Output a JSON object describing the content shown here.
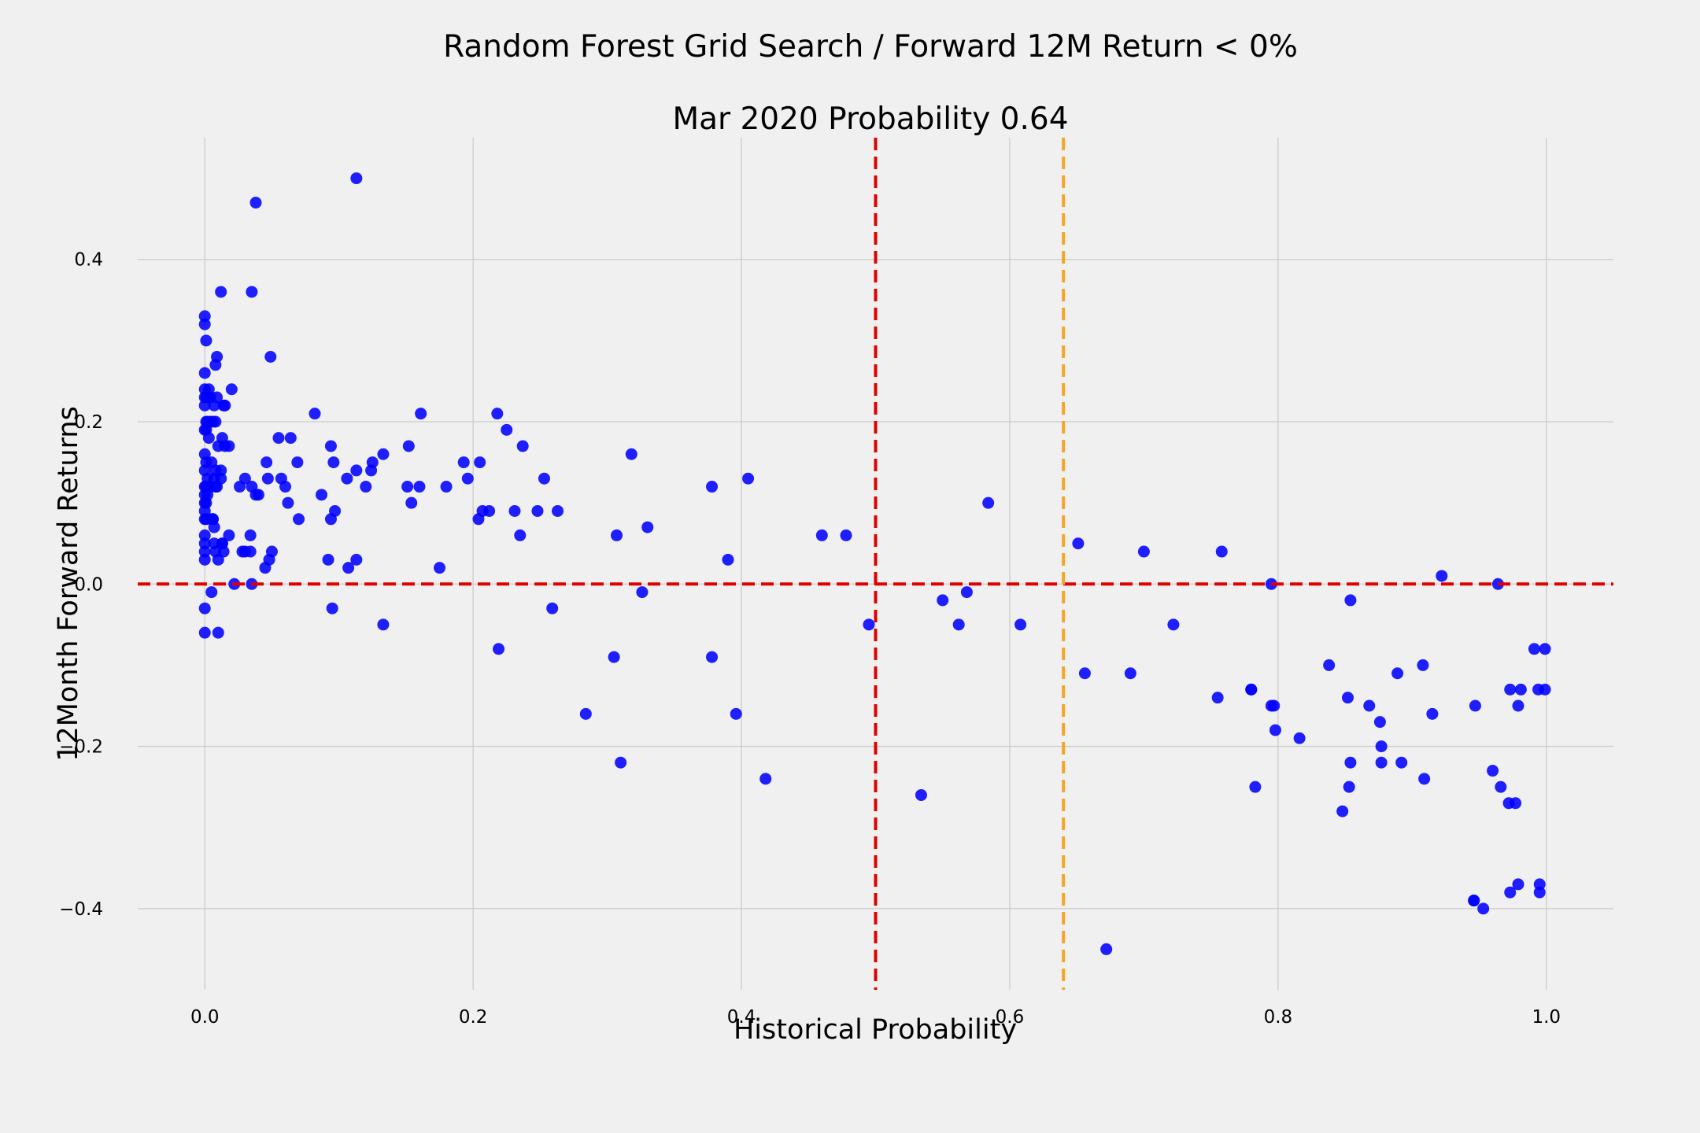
{
  "chart_data": {
    "type": "scatter",
    "title": "Random Forest Grid Search / Forward 12M Return < 0%",
    "subtitle": "Mar 2020 Probability 0.64",
    "xlabel": "Historical Probability",
    "ylabel": "12Month Forward Returns",
    "xlim": [
      -0.05,
      1.05
    ],
    "ylim": [
      -0.5,
      0.55
    ],
    "xticks": [
      0.0,
      0.2,
      0.4,
      0.6,
      0.8,
      1.0
    ],
    "xtick_labels": [
      "0.0",
      "0.2",
      "0.4",
      "0.6",
      "0.8",
      "1.0"
    ],
    "yticks": [
      -0.4,
      -0.2,
      0.0,
      0.2,
      0.4
    ],
    "ytick_labels": [
      "−0.4",
      "−0.2",
      "0.0",
      "0.2",
      "0.4"
    ],
    "grid": true,
    "reference_lines": [
      {
        "orientation": "horizontal",
        "value": 0.0,
        "color": "#e00000",
        "style": "dashed"
      },
      {
        "orientation": "vertical",
        "value": 0.5,
        "color": "#e00000",
        "style": "dashed"
      },
      {
        "orientation": "vertical",
        "value": 0.64,
        "color": "#f5a623",
        "style": "dashed"
      }
    ],
    "point_color": "#0000ff",
    "background_color": "#f0f0f0",
    "x": [
      0.113,
      0.038,
      0.012,
      0.035,
      0.0,
      0.0,
      0.001,
      0.009,
      0.049,
      0.008,
      0.0,
      0.0,
      0.003,
      0.02,
      0.0,
      0.001,
      0.004,
      0.009,
      0.015,
      0.007,
      0.014,
      0.0,
      0.001,
      0.004,
      0.008,
      0.002,
      0.006,
      0.013,
      0.018,
      0.0,
      0.001,
      0.003,
      0.01,
      0.015,
      0.0,
      0.001,
      0.005,
      0.008,
      0.012,
      0.0,
      0.002,
      0.007,
      0.012,
      0.026,
      0.03,
      0.035,
      0.04,
      0.0,
      0.001,
      0.004,
      0.009,
      0.0,
      0.002,
      0.006,
      0.0,
      0.001,
      0.005,
      0.0,
      0.006,
      0.0,
      0.001,
      0.007,
      0.013,
      0.018,
      0.034,
      0.0,
      0.007,
      0.013,
      0.0,
      0.008,
      0.014,
      0.03,
      0.034,
      0.048,
      0.0,
      0.01,
      0.028,
      0.038,
      0.05,
      0.0,
      0.01,
      0.022,
      0.035,
      0.045,
      0.0,
      0.005,
      0.0,
      0.008,
      0.082,
      0.161,
      0.218,
      0.225,
      0.055,
      0.064,
      0.094,
      0.152,
      0.096,
      0.113,
      0.125,
      0.133,
      0.046,
      0.057,
      0.069,
      0.087,
      0.106,
      0.124,
      0.193,
      0.205,
      0.237,
      0.047,
      0.06,
      0.12,
      0.151,
      0.16,
      0.18,
      0.196,
      0.062,
      0.097,
      0.154,
      0.212,
      0.207,
      0.231,
      0.248,
      0.263,
      0.07,
      0.094,
      0.204,
      0.092,
      0.113,
      0.107,
      0.175,
      0.235,
      0.095,
      0.259,
      0.133,
      0.219,
      0.253,
      0.318,
      0.378,
      0.405,
      0.307,
      0.33,
      0.39,
      0.305,
      0.326,
      0.378,
      0.284,
      0.396,
      0.31,
      0.418,
      0.46,
      0.478,
      0.584,
      0.495,
      0.55,
      0.568,
      0.562,
      0.608,
      0.534,
      0.651,
      0.7,
      0.758,
      0.656,
      0.69,
      0.722,
      0.755,
      0.78,
      0.672,
      0.795,
      0.922,
      0.964,
      0.854,
      0.838,
      0.908,
      0.78,
      0.973,
      0.994,
      0.999,
      0.852,
      0.868,
      0.915,
      0.795,
      0.797,
      0.798,
      0.876,
      0.816,
      0.877,
      0.877,
      0.892,
      0.947,
      0.979,
      0.973,
      0.946,
      0.966,
      0.96,
      0.909,
      0.783,
      0.854,
      0.853,
      0.848,
      0.977,
      0.972,
      0.946,
      0.953,
      0.979,
      0.995,
      0.995,
      0.991,
      0.999,
      0.889,
      0.981
    ],
    "y": [
      0.5,
      0.47,
      0.36,
      0.36,
      0.33,
      0.32,
      0.3,
      0.28,
      0.28,
      0.27,
      0.26,
      0.24,
      0.24,
      0.24,
      0.23,
      0.23,
      0.23,
      0.23,
      0.22,
      0.22,
      0.22,
      0.22,
      0.2,
      0.2,
      0.2,
      0.2,
      0.2,
      0.18,
      0.17,
      0.19,
      0.19,
      0.18,
      0.17,
      0.17,
      0.16,
      0.15,
      0.15,
      0.14,
      0.14,
      0.14,
      0.13,
      0.13,
      0.13,
      0.12,
      0.13,
      0.12,
      0.11,
      0.12,
      0.12,
      0.12,
      0.12,
      0.11,
      0.11,
      0.08,
      0.1,
      0.1,
      0.08,
      0.09,
      0.08,
      0.08,
      0.08,
      0.07,
      0.05,
      0.06,
      0.06,
      0.06,
      0.05,
      0.05,
      0.05,
      0.04,
      0.04,
      0.04,
      0.04,
      0.03,
      0.03,
      0.03,
      0.04,
      0.11,
      0.04,
      -0.03,
      -0.06,
      0.0,
      0.0,
      0.02,
      -0.06,
      -0.01,
      0.04,
      0.12,
      0.21,
      0.21,
      0.21,
      0.19,
      0.18,
      0.18,
      0.17,
      0.17,
      0.15,
      0.14,
      0.15,
      0.16,
      0.15,
      0.13,
      0.15,
      0.11,
      0.13,
      0.14,
      0.15,
      0.15,
      0.17,
      0.13,
      0.12,
      0.12,
      0.12,
      0.12,
      0.12,
      0.13,
      0.1,
      0.09,
      0.1,
      0.09,
      0.09,
      0.09,
      0.09,
      0.09,
      0.08,
      0.08,
      0.08,
      0.03,
      0.03,
      0.02,
      0.02,
      0.06,
      -0.03,
      -0.03,
      -0.05,
      -0.08,
      0.13,
      0.16,
      0.12,
      0.13,
      0.06,
      0.07,
      0.03,
      -0.09,
      -0.01,
      -0.09,
      -0.16,
      -0.16,
      -0.22,
      -0.24,
      0.06,
      0.06,
      0.1,
      -0.05,
      -0.02,
      -0.01,
      -0.05,
      -0.05,
      -0.26,
      0.05,
      0.04,
      0.04,
      -0.11,
      -0.11,
      -0.05,
      -0.14,
      -0.13,
      -0.45,
      0.0,
      0.01,
      0.0,
      -0.02,
      -0.1,
      -0.1,
      -0.13,
      -0.13,
      -0.13,
      -0.13,
      -0.14,
      -0.15,
      -0.16,
      -0.15,
      -0.15,
      -0.18,
      -0.17,
      -0.19,
      -0.2,
      -0.22,
      -0.22,
      -0.15,
      -0.15,
      -0.38,
      -0.39,
      -0.25,
      -0.23,
      -0.24,
      -0.25,
      -0.22,
      -0.25,
      -0.28,
      -0.27,
      -0.27,
      -0.39,
      -0.4,
      -0.37,
      -0.37,
      -0.38,
      -0.08,
      -0.08,
      -0.11,
      -0.13
    ]
  }
}
